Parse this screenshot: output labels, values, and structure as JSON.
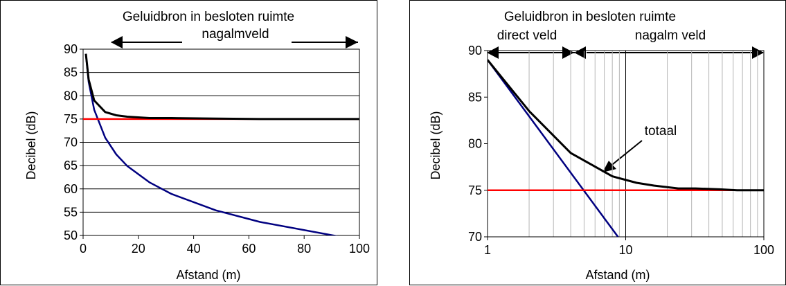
{
  "colors": {
    "total": "#000000",
    "reverb": "#ff0000",
    "direct": "#000080",
    "grid": "#000000",
    "grid_minor": "#b4b4b4"
  },
  "chart_data": [
    {
      "type": "line",
      "title": "Geluidbron in besloten ruimte",
      "annotations": {
        "field": "nagalmveld"
      },
      "xlabel": "Afstand (m)",
      "ylabel": "Decibel (dB)",
      "x_scale": "linear",
      "xlim": [
        0,
        100
      ],
      "ylim": [
        50,
        90
      ],
      "xticks": [
        "0",
        "20",
        "40",
        "60",
        "80",
        "100"
      ],
      "yticks": [
        "90",
        "85",
        "80",
        "75",
        "70",
        "65",
        "60",
        "55",
        "50"
      ],
      "grid": "horizontal",
      "series": [
        {
          "color": "#000000",
          "x": [
            1,
            2,
            4,
            8,
            12,
            16,
            24,
            32,
            48,
            64,
            96,
            100
          ],
          "y": [
            89.0,
            83.5,
            79.0,
            76.5,
            75.8,
            75.5,
            75.2,
            75.2,
            75.1,
            75.0,
            75.0,
            75.0
          ]
        },
        {
          "color": "#ff0000",
          "x": [
            0,
            100
          ],
          "y": [
            75,
            75
          ]
        },
        {
          "color": "#000080",
          "x": [
            1,
            2,
            4,
            8,
            12,
            16,
            24,
            32,
            48,
            64,
            96
          ],
          "y": [
            89.0,
            83.0,
            77.0,
            71.0,
            67.4,
            64.9,
            61.4,
            58.9,
            55.4,
            52.9,
            49.4
          ]
        }
      ]
    },
    {
      "type": "line",
      "title": "Geluidbron in besloten ruimte",
      "annotations": {
        "direct_field": "direct veld",
        "reverb_field": "nagalm veld",
        "total": "totaal"
      },
      "xlabel": "Afstand (m)",
      "ylabel": "Decibel (dB)",
      "x_scale": "log",
      "xlim": [
        1,
        100
      ],
      "ylim": [
        70,
        90
      ],
      "xticks": [
        "1",
        "10",
        "100"
      ],
      "yticks": [
        "90",
        "85",
        "80",
        "75",
        "70"
      ],
      "grid": "vertical",
      "series": [
        {
          "color": "#000000",
          "x": [
            1,
            2,
            4,
            8,
            12,
            16,
            24,
            32,
            48,
            64,
            96,
            100
          ],
          "y": [
            89.0,
            83.5,
            79.0,
            76.5,
            75.8,
            75.5,
            75.2,
            75.2,
            75.1,
            75.0,
            75.0,
            75.0
          ]
        },
        {
          "color": "#ff0000",
          "x": [
            1,
            100
          ],
          "y": [
            75,
            75
          ]
        },
        {
          "color": "#000080",
          "x": [
            1,
            8.8
          ],
          "y": [
            89,
            70
          ]
        }
      ]
    }
  ]
}
